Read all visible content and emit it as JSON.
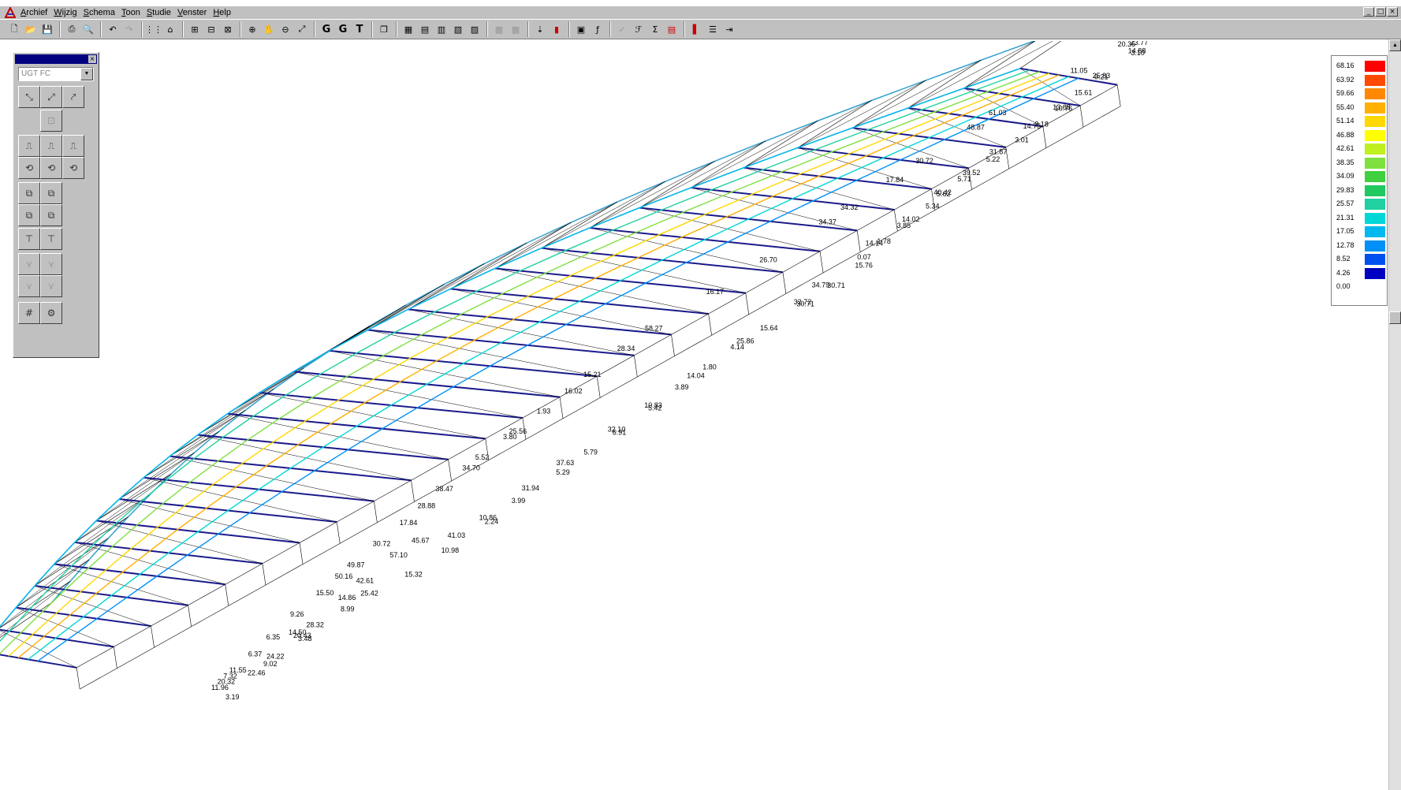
{
  "menubar": {
    "items": [
      "Archief",
      "Wijzig",
      "Schema",
      "Toon",
      "Studie",
      "Venster",
      "Help"
    ],
    "window_controls": [
      "_",
      "□",
      "×"
    ]
  },
  "toolbar": {
    "text_buttons": [
      "G",
      "G",
      "T"
    ]
  },
  "palette": {
    "selector_value": "UGT FC"
  },
  "legend": {
    "values": [
      "68.16",
      "63.92",
      "59.66",
      "55.40",
      "51.14",
      "46.88",
      "42.61",
      "38.35",
      "34.09",
      "29.83",
      "25.57",
      "21.31",
      "17.05",
      "12.78",
      "8.52",
      "4.26",
      "0.00"
    ],
    "colors": [
      "#ff0000",
      "#ff4a00",
      "#ff8800",
      "#ffb000",
      "#ffd800",
      "#ffff00",
      "#c0f020",
      "#80e040",
      "#40d040",
      "#20c860",
      "#20d0a0",
      "#00d8d8",
      "#00b8f0",
      "#0090f8",
      "#0050f0",
      "#0000c0",
      "#ffffff"
    ]
  },
  "model": {
    "labels": [
      {
        "t": "3.19",
        "u": 0.07,
        "v": 1.05
      },
      {
        "t": "9.02",
        "u": 0.13,
        "v": 0.95
      },
      {
        "t": "3.48",
        "u": 0.18,
        "v": 0.9
      },
      {
        "t": "8.99",
        "u": 0.24,
        "v": 0.85
      },
      {
        "t": "15.32",
        "u": 0.32,
        "v": 0.86
      },
      {
        "t": "10.98",
        "u": 0.37,
        "v": 0.83
      },
      {
        "t": "2.24",
        "u": 0.43,
        "v": 0.79
      },
      {
        "t": "3.99",
        "u": 0.47,
        "v": 0.74
      },
      {
        "t": "5.29",
        "u": 0.53,
        "v": 0.71
      },
      {
        "t": "5.79",
        "u": 0.57,
        "v": 0.67
      },
      {
        "t": "6.91",
        "u": 0.61,
        "v": 0.64
      },
      {
        "t": "5.42",
        "u": 0.66,
        "v": 0.6
      },
      {
        "t": "3.89",
        "u": 0.7,
        "v": 0.55
      },
      {
        "t": "1.80",
        "u": 0.74,
        "v": 0.51
      },
      {
        "t": "4.14",
        "u": 0.78,
        "v": 0.47
      },
      {
        "t": "15.64",
        "u": 0.82,
        "v": 0.45
      },
      {
        "t": "30.71",
        "u": 0.87,
        "v": 0.42
      },
      {
        "t": "30.71",
        "u": 0.91,
        "v": 0.41
      },
      {
        "t": "15.76",
        "u": 0.95,
        "v": 0.37
      },
      {
        "t": "0.07",
        "u": 0.96,
        "v": 0.31
      },
      {
        "t": "1.78",
        "u": 0.99,
        "v": 0.27
      },
      {
        "t": "3.85",
        "u": 1.02,
        "v": 0.23
      },
      {
        "t": "5.34",
        "u": 1.06,
        "v": 0.2
      },
      {
        "t": "5.62",
        "u": 1.08,
        "v": 0.15
      },
      {
        "t": "5.71",
        "u": 1.11,
        "v": 0.12
      },
      {
        "t": "5.22",
        "u": 1.15,
        "v": 0.09
      },
      {
        "t": "3.01",
        "u": 1.19,
        "v": 0.06
      },
      {
        "t": "2.18",
        "u": 1.22,
        "v": 0.02
      },
      {
        "t": "10.76",
        "u": 1.25,
        "v": -0.02
      },
      {
        "t": "15.61",
        "u": 1.28,
        "v": -0.06
      },
      {
        "t": "9.21",
        "u": 1.31,
        "v": -0.1
      },
      {
        "t": "3.10",
        "u": 1.36,
        "v": -0.13
      },
      {
        "t": "12.94",
        "u": 1.42,
        "v": -0.2
      },
      {
        "t": "20.35",
        "u": 1.36,
        "v": -0.27
      },
      {
        "t": "22.08",
        "u": 1.39,
        "v": -0.24
      },
      {
        "t": "11.05",
        "u": 1.3,
        "v": -0.27
      },
      {
        "t": "61.03",
        "u": 1.2,
        "v": -0.3
      },
      {
        "t": "48.87",
        "u": 1.17,
        "v": -0.28
      },
      {
        "t": "30.72",
        "u": 1.1,
        "v": -0.24
      },
      {
        "t": "17.84",
        "u": 1.06,
        "v": -0.22
      },
      {
        "t": "34.32",
        "u": 1.0,
        "v": -0.2
      },
      {
        "t": "34.37",
        "u": 0.97,
        "v": -0.18
      },
      {
        "t": "26.70",
        "u": 0.89,
        "v": -0.14
      },
      {
        "t": "16.17",
        "u": 0.82,
        "v": -0.12
      },
      {
        "t": "58.27",
        "u": 0.74,
        "v": -0.1
      },
      {
        "t": "28.34",
        "u": 0.7,
        "v": -0.06
      },
      {
        "t": "15.21",
        "u": 0.65,
        "v": 0.0
      },
      {
        "t": "16.02",
        "u": 0.62,
        "v": 0.05
      },
      {
        "t": "1.93",
        "u": 0.58,
        "v": 0.09
      },
      {
        "t": "25.56",
        "u": 0.54,
        "v": 0.13
      },
      {
        "t": "3.80",
        "u": 0.53,
        "v": 0.15
      },
      {
        "t": "5.52",
        "u": 0.49,
        "v": 0.19
      },
      {
        "t": "34.70",
        "u": 0.47,
        "v": 0.22
      },
      {
        "t": "38.47",
        "u": 0.43,
        "v": 0.27
      },
      {
        "t": "28.88",
        "u": 0.4,
        "v": 0.33
      },
      {
        "t": "17.84",
        "u": 0.37,
        "v": 0.39
      },
      {
        "t": "30.72",
        "u": 0.33,
        "v": 0.44
      },
      {
        "t": "49.87",
        "u": 0.29,
        "v": 0.5
      },
      {
        "t": "50.16",
        "u": 0.27,
        "v": 0.54
      },
      {
        "t": "15.50",
        "u": 0.24,
        "v": 0.59
      },
      {
        "t": "9.26",
        "u": 0.2,
        "v": 0.65
      },
      {
        "t": "6.35",
        "u": 0.16,
        "v": 0.73
      },
      {
        "t": "6.37",
        "u": 0.13,
        "v": 0.79
      },
      {
        "t": "11.55",
        "u": 0.1,
        "v": 0.84
      },
      {
        "t": "7.32",
        "u": 0.09,
        "v": 0.86
      },
      {
        "t": "20.32",
        "u": 0.08,
        "v": 0.88
      },
      {
        "t": "11.96",
        "u": 0.07,
        "v": 0.9
      },
      {
        "t": "24.22",
        "u": 0.14,
        "v": 0.9
      },
      {
        "t": "22.46",
        "u": 0.11,
        "v": 0.95
      },
      {
        "t": "20.43",
        "u": 0.18,
        "v": 0.85
      },
      {
        "t": "28.32",
        "u": 0.2,
        "v": 0.82
      },
      {
        "t": "14.50",
        "u": 0.18,
        "v": 0.8
      },
      {
        "t": "25.42",
        "u": 0.27,
        "v": 0.81
      },
      {
        "t": "14.86",
        "u": 0.25,
        "v": 0.74
      },
      {
        "t": "42.61",
        "u": 0.28,
        "v": 0.68
      },
      {
        "t": "45.67",
        "u": 0.36,
        "v": 0.6
      },
      {
        "t": "57.10",
        "u": 0.33,
        "v": 0.62
      },
      {
        "t": "41.03",
        "u": 0.39,
        "v": 0.73
      },
      {
        "t": "10.86",
        "u": 0.43,
        "v": 0.73
      },
      {
        "t": "31.94",
        "u": 0.49,
        "v": 0.68
      },
      {
        "t": "37.63",
        "u": 0.54,
        "v": 0.63
      },
      {
        "t": "32.10",
        "u": 0.61,
        "v": 0.59
      },
      {
        "t": "10.83",
        "u": 0.66,
        "v": 0.56
      },
      {
        "t": "14.04",
        "u": 0.72,
        "v": 0.51
      },
      {
        "t": "25.86",
        "u": 0.79,
        "v": 0.45
      },
      {
        "t": "32.72",
        "u": 0.87,
        "v": 0.39
      },
      {
        "t": "34.79",
        "u": 0.9,
        "v": 0.33
      },
      {
        "t": "14.14",
        "u": 0.98,
        "v": 0.23
      },
      {
        "t": "14.02",
        "u": 1.03,
        "v": 0.2
      },
      {
        "t": "40.42",
        "u": 1.08,
        "v": 0.12
      },
      {
        "t": "39.52",
        "u": 1.12,
        "v": 0.09
      },
      {
        "t": "31.87",
        "u": 1.16,
        "v": 0.04
      },
      {
        "t": "14.75",
        "u": 1.21,
        "v": -0.02
      },
      {
        "t": "13.68",
        "u": 1.25,
        "v": -0.04
      },
      {
        "t": "25.83",
        "u": 1.31,
        "v": -0.12
      },
      {
        "t": "14.88",
        "u": 1.36,
        "v": -0.16
      },
      {
        "t": "23.77",
        "u": 1.37,
        "v": -0.22
      }
    ]
  }
}
